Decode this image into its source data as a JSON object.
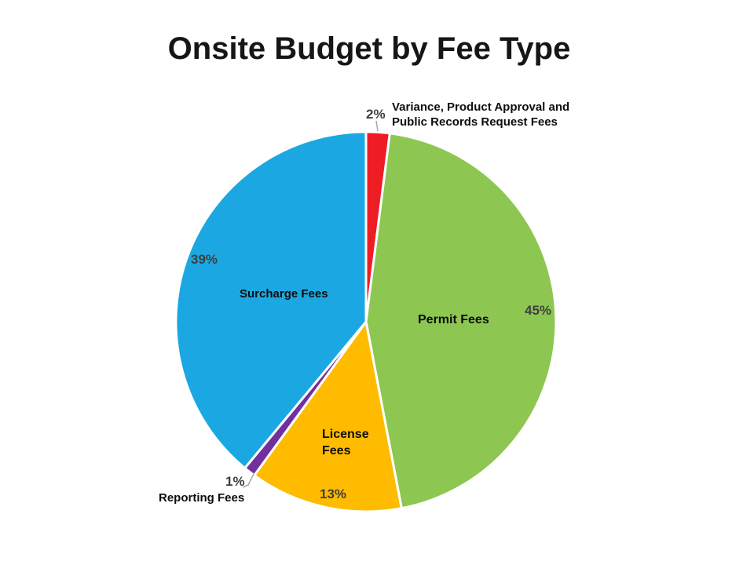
{
  "title": "Onsite Budget by Fee Type",
  "chart_data": {
    "type": "pie",
    "title": "Onsite Budget by Fee Type",
    "start_angle_deg": 0,
    "direction": "clockwise",
    "legend": "none",
    "slices": [
      {
        "label": "Variance, Product Approval and Public Records Request Fees",
        "value": 2,
        "pct_label": "2%",
        "color": "#EE1C23"
      },
      {
        "label": "Permit Fees",
        "value": 45,
        "pct_label": "45%",
        "color": "#8DC751"
      },
      {
        "label": "License Fees",
        "value": 13,
        "pct_label": "13%",
        "color": "#FFBB00"
      },
      {
        "label": "Reporting Fees",
        "value": 1,
        "pct_label": "1%",
        "color": "#7030A0"
      },
      {
        "label": "Surcharge Fees",
        "value": 39,
        "pct_label": "39%",
        "color": "#1BA8E2"
      }
    ]
  },
  "annotations": {
    "variance_line1": "Variance, Product Approval and",
    "variance_line2": "Public Records Request Fees",
    "license_line1": "License",
    "license_line2": "Fees"
  },
  "colors": {
    "percent_text": "#3f3f3f",
    "category_text": "#0d0d0d",
    "leader_line": "#a6a6a6",
    "slice_border": "#ffffff"
  }
}
